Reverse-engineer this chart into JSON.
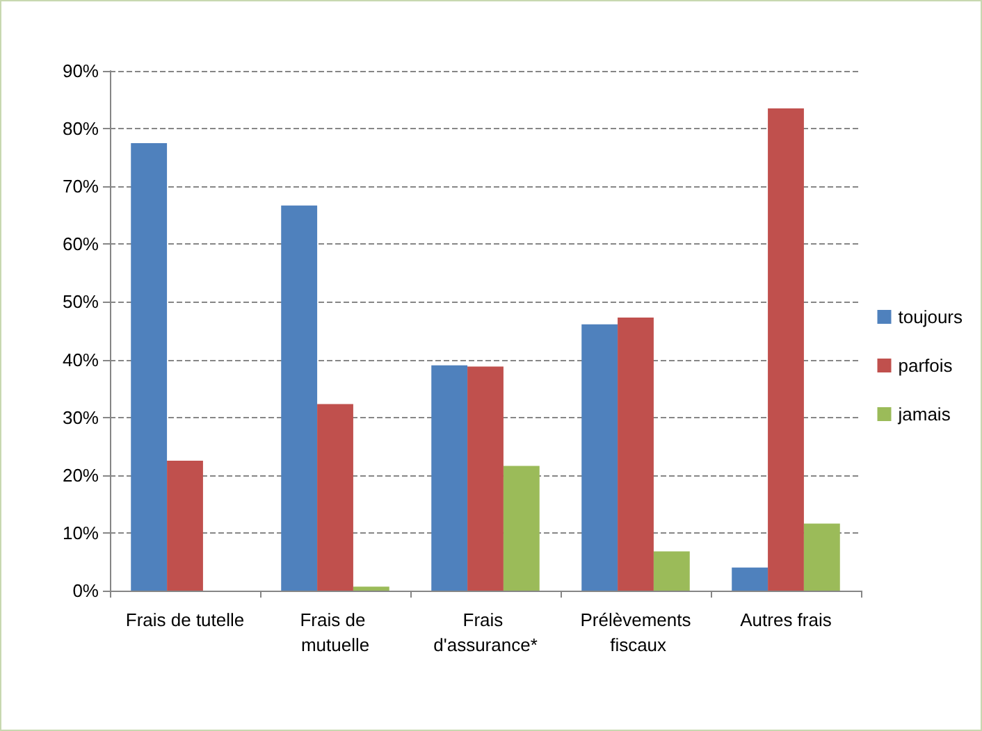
{
  "chart_data": {
    "type": "bar",
    "categories": [
      "Frais de tutelle",
      "Frais de mutuelle",
      "Frais d'assurance*",
      "Prélèvements fiscaux",
      "Autres frais"
    ],
    "series": [
      {
        "name": "toujours",
        "color": "#4f81bd",
        "values": [
          77.5,
          66.7,
          39,
          46.1,
          4
        ]
      },
      {
        "name": "parfois",
        "color": "#c0504d",
        "values": [
          22.5,
          32.3,
          38.8,
          47.3,
          83.5
        ]
      },
      {
        "name": "jamais",
        "color": "#9bbb59",
        "values": [
          0,
          0.7,
          21.6,
          6.8,
          11.6
        ]
      }
    ],
    "ylim": [
      0,
      90
    ],
    "yticks": [
      {
        "value": 0,
        "label": "0%"
      },
      {
        "value": 10,
        "label": "10%"
      },
      {
        "value": 20,
        "label": "20%"
      },
      {
        "value": 30,
        "label": "30%"
      },
      {
        "value": 40,
        "label": "40%"
      },
      {
        "value": 50,
        "label": "50%"
      },
      {
        "value": 60,
        "label": "60%"
      },
      {
        "value": 70,
        "label": "70%"
      },
      {
        "value": 80,
        "label": "80%"
      },
      {
        "value": 90,
        "label": "90%"
      }
    ],
    "grid": "y",
    "legend": "right"
  }
}
